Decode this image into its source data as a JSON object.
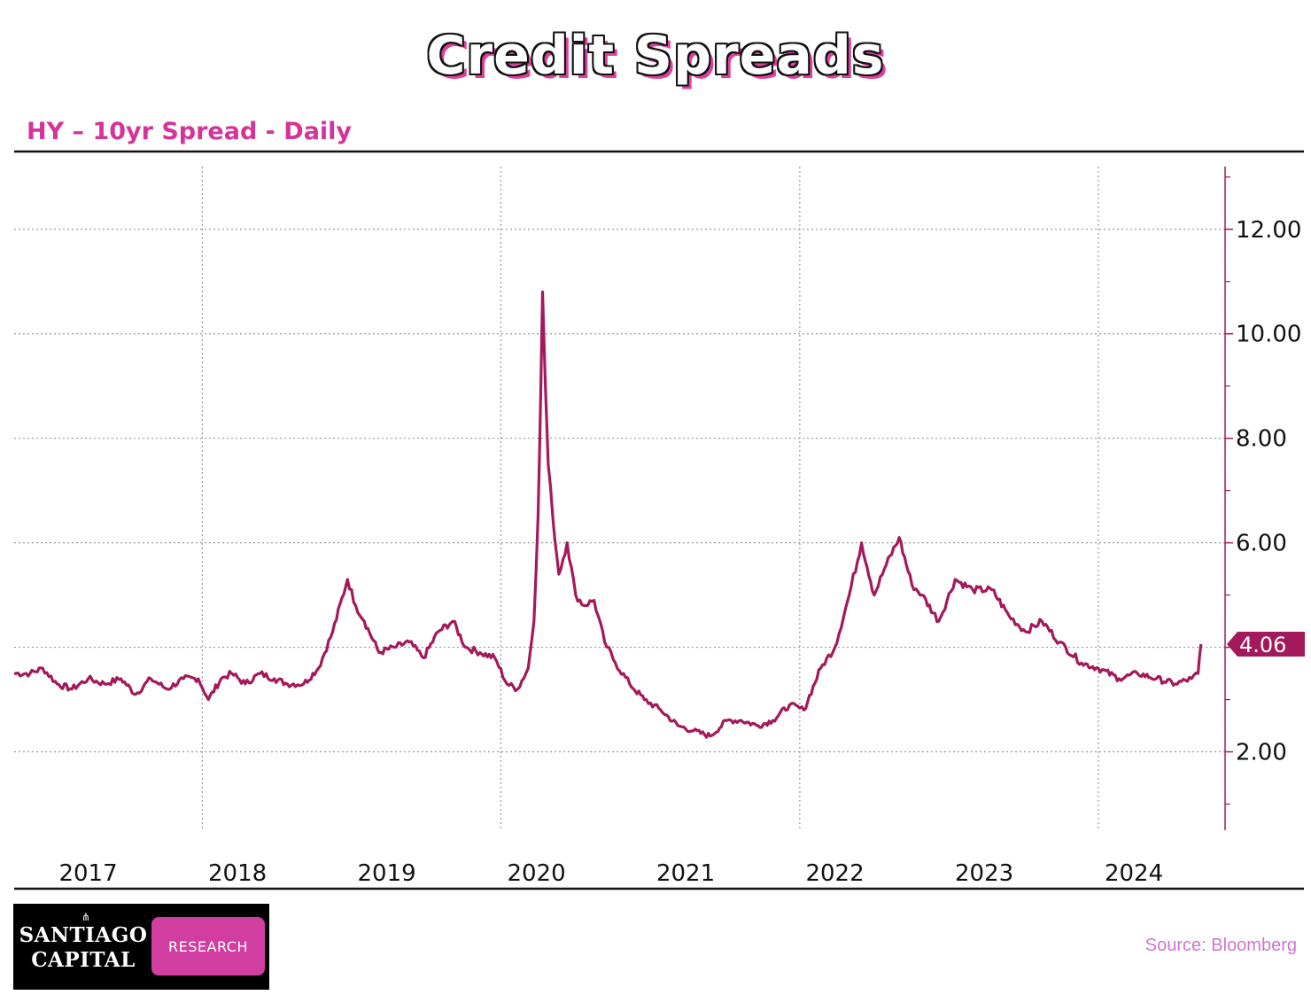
{
  "title": "Credit Spreads",
  "subtitle": "HY – 10yr Spread - Daily",
  "source": "Source: Bloomberg",
  "logo": {
    "line1": "SANTIAGO",
    "line2": "CAPITAL",
    "badge": "RESEARCH",
    "icon": "shell-icon"
  },
  "colors": {
    "line": "#a3195b",
    "title_shadow": "#e0409b",
    "subtitle": "#d6339a",
    "badge": "#d13ea0"
  },
  "chart_data": {
    "type": "line",
    "title": "",
    "xlabel": "",
    "ylabel": "",
    "yaxis_position": "right",
    "ylim": [
      0.5,
      13.2
    ],
    "xlim": [
      "2016-09-01",
      "2024-10-10"
    ],
    "grid": true,
    "yticks": [
      2,
      4,
      6,
      8,
      10,
      12
    ],
    "ytick_labels": [
      "2.00",
      "4.00",
      "6.00",
      "8.00",
      "10.00",
      "12.00"
    ],
    "xtick_labels": [
      "2017",
      "2018",
      "2019",
      "2020",
      "2021",
      "2022",
      "2023",
      "2024"
    ],
    "xtick_positions": [
      "2017-03-01",
      "2018-03-01",
      "2019-03-01",
      "2020-03-01",
      "2021-03-01",
      "2022-03-01",
      "2023-03-01",
      "2024-03-01"
    ],
    "gridline_dates": [
      "2017-12-05",
      "2019-12-05",
      "2021-12-05",
      "2023-12-05"
    ],
    "last_value": 4.06,
    "last_value_label": "4.06",
    "series": [
      {
        "x": [
          "2016-09-01",
          "2016-10-10",
          "2016-11-10",
          "2016-12-15",
          "2017-01-20",
          "2017-03-01",
          "2017-04-10",
          "2017-05-20",
          "2017-06-25",
          "2017-08-01",
          "2017-09-10",
          "2017-10-20",
          "2017-11-25",
          "2017-12-20",
          "2018-01-20",
          "2018-02-15",
          "2018-03-20",
          "2018-04-25",
          "2018-05-30",
          "2018-07-01",
          "2018-08-10",
          "2018-09-15",
          "2018-10-20",
          "2018-11-25",
          "2018-12-15",
          "2019-01-05",
          "2019-02-10",
          "2019-03-20",
          "2019-04-25",
          "2019-05-30",
          "2019-07-05",
          "2019-08-10",
          "2019-09-10",
          "2019-10-15",
          "2019-11-20",
          "2019-12-20",
          "2020-01-15",
          "2020-02-10",
          "2020-02-24",
          "2020-03-05",
          "2020-03-12",
          "2020-03-16",
          "2020-03-23",
          "2020-03-30",
          "2020-04-10",
          "2020-04-25",
          "2020-05-15",
          "2020-06-05",
          "2020-06-25",
          "2020-07-20",
          "2020-08-15",
          "2020-09-10",
          "2020-10-15",
          "2020-11-20",
          "2020-12-30",
          "2021-02-10",
          "2021-03-20",
          "2021-04-30",
          "2021-06-10",
          "2021-07-15",
          "2021-08-25",
          "2021-09-30",
          "2021-11-10",
          "2021-12-15",
          "2022-01-25",
          "2022-03-01",
          "2022-04-05",
          "2022-05-05",
          "2022-06-05",
          "2022-06-30",
          "2022-08-05",
          "2022-09-05",
          "2022-09-30",
          "2022-11-10",
          "2022-12-20",
          "2023-02-01",
          "2023-03-20",
          "2023-05-01",
          "2023-06-10",
          "2023-07-20",
          "2023-09-01",
          "2023-10-25",
          "2023-12-05",
          "2024-01-25",
          "2024-03-10",
          "2024-04-25",
          "2024-06-10",
          "2024-07-20",
          "2024-08-05",
          "2024-08-12"
        ],
        "y": [
          3.5,
          3.5,
          3.6,
          3.3,
          3.2,
          3.4,
          3.3,
          3.4,
          3.1,
          3.4,
          3.2,
          3.4,
          3.4,
          3.0,
          3.4,
          3.5,
          3.3,
          3.5,
          3.4,
          3.3,
          3.3,
          3.6,
          4.3,
          5.3,
          4.8,
          4.5,
          3.9,
          4.0,
          4.1,
          3.8,
          4.3,
          4.5,
          4.0,
          3.9,
          3.8,
          3.3,
          3.2,
          3.6,
          4.5,
          6.5,
          9.0,
          10.8,
          9.0,
          7.5,
          6.5,
          5.4,
          6.0,
          5.0,
          4.8,
          4.9,
          4.1,
          3.7,
          3.3,
          3.0,
          2.8,
          2.5,
          2.4,
          2.3,
          2.6,
          2.6,
          2.5,
          2.6,
          2.9,
          2.8,
          3.6,
          4.0,
          5.0,
          6.0,
          5.0,
          5.5,
          6.1,
          5.2,
          5.0,
          4.5,
          5.3,
          5.1,
          5.1,
          4.6,
          4.3,
          4.5,
          4.1,
          3.7,
          3.6,
          3.4,
          3.5,
          3.4,
          3.3,
          3.4,
          3.5,
          4.06
        ]
      }
    ]
  }
}
